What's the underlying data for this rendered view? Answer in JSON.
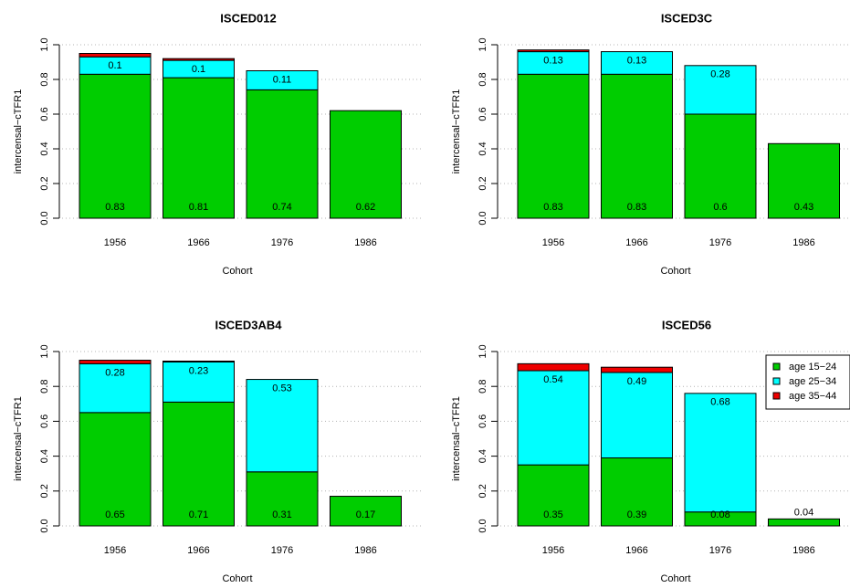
{
  "colors": {
    "age_15_24": "#00CD00",
    "age_25_34": "#00FFFF",
    "age_35_44": "#EE0000",
    "grid": "#b4b4b4"
  },
  "legend": {
    "placement": "top-right of ISCED56 panel",
    "entries": [
      "age 15−24",
      "age 25−34",
      "age 35−44"
    ]
  },
  "chart_data": [
    {
      "type": "bar",
      "stacked": true,
      "title": "ISCED012",
      "xlabel": "Cohort",
      "ylabel": "intercensal−cTFR1",
      "ylim": [
        0,
        1
      ],
      "yticks": [
        "0.0",
        "0.2",
        "0.4",
        "0.6",
        "0.8",
        "1.0"
      ],
      "categories": [
        "1956",
        "1966",
        "1976",
        "1986"
      ],
      "series": [
        {
          "name": "age 15−24",
          "values": [
            0.83,
            0.81,
            0.74,
            0.62
          ]
        },
        {
          "name": "age 25−34",
          "values": [
            0.1,
            0.1,
            0.11,
            0
          ]
        },
        {
          "name": "age 35−44",
          "values": [
            0.02,
            0.01,
            0,
            0
          ]
        }
      ],
      "bottom_labels": [
        "0.83",
        "0.81",
        "0.74",
        "0.62"
      ],
      "top_labels": [
        "0.1",
        "0.1",
        "0.11",
        ""
      ]
    },
    {
      "type": "bar",
      "stacked": true,
      "title": "ISCED3C",
      "xlabel": "Cohort",
      "ylabel": "intercensal−cTFR1",
      "ylim": [
        0,
        1
      ],
      "yticks": [
        "0.0",
        "0.2",
        "0.4",
        "0.6",
        "0.8",
        "1.0"
      ],
      "categories": [
        "1956",
        "1966",
        "1976",
        "1986"
      ],
      "series": [
        {
          "name": "age 15−24",
          "values": [
            0.83,
            0.83,
            0.6,
            0.43
          ]
        },
        {
          "name": "age 25−34",
          "values": [
            0.13,
            0.13,
            0.28,
            0
          ]
        },
        {
          "name": "age 35−44",
          "values": [
            0.01,
            0,
            0,
            0
          ]
        }
      ],
      "bottom_labels": [
        "0.83",
        "0.83",
        "0.6",
        "0.43"
      ],
      "top_labels": [
        "0.13",
        "0.13",
        "0.28",
        ""
      ]
    },
    {
      "type": "bar",
      "stacked": true,
      "title": "ISCED3AB4",
      "xlabel": "Cohort",
      "ylabel": "intercensal−cTFR1",
      "ylim": [
        0,
        1
      ],
      "yticks": [
        "0.0",
        "0.2",
        "0.4",
        "0.6",
        "0.8",
        "1.0"
      ],
      "categories": [
        "1956",
        "1966",
        "1976",
        "1986"
      ],
      "series": [
        {
          "name": "age 15−24",
          "values": [
            0.65,
            0.71,
            0.31,
            0.17
          ]
        },
        {
          "name": "age 25−34",
          "values": [
            0.28,
            0.23,
            0.53,
            0
          ]
        },
        {
          "name": "age 35−44",
          "values": [
            0.02,
            0.005,
            0,
            0
          ]
        }
      ],
      "bottom_labels": [
        "0.65",
        "0.71",
        "0.31",
        "0.17"
      ],
      "top_labels": [
        "0.28",
        "0.23",
        "0.53",
        ""
      ]
    },
    {
      "type": "bar",
      "stacked": true,
      "title": "ISCED56",
      "xlabel": "Cohort",
      "ylabel": "intercensal−cTFR1",
      "ylim": [
        0,
        1
      ],
      "yticks": [
        "0.0",
        "0.2",
        "0.4",
        "0.6",
        "0.8",
        "1.0"
      ],
      "categories": [
        "1956",
        "1966",
        "1976",
        "1986"
      ],
      "series": [
        {
          "name": "age 15−24",
          "values": [
            0.35,
            0.39,
            0.08,
            0.04
          ]
        },
        {
          "name": "age 25−34",
          "values": [
            0.54,
            0.49,
            0.68,
            0
          ]
        },
        {
          "name": "age 35−44",
          "values": [
            0.04,
            0.03,
            0,
            0
          ]
        }
      ],
      "bottom_labels": [
        "0.35",
        "0.39",
        "0.08",
        ""
      ],
      "top_labels": [
        "0.54",
        "0.49",
        "0.68",
        "0.04"
      ]
    }
  ]
}
